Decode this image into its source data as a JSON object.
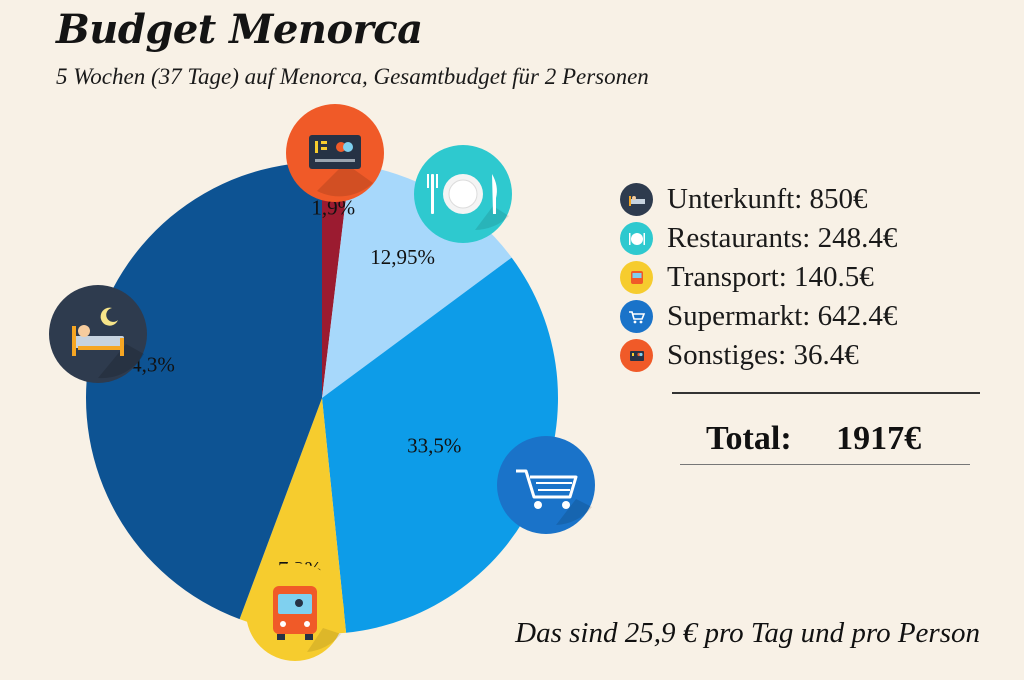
{
  "title": "Budget Menorca",
  "subtitle": "5 Wochen (37 Tage) auf Menorca, Gesamtbudget für 2 Personen",
  "chart_data": {
    "type": "pie",
    "start_angle_deg": 0,
    "direction": "clockwise",
    "slices": [
      {
        "key": "sonstiges",
        "label": "1,9%",
        "value": 1.9,
        "color": "#9b1b30",
        "icon": "credit-card-icon"
      },
      {
        "key": "restaurants",
        "label": "12,95%",
        "value": 12.95,
        "color": "#a7d8fb",
        "icon": "plate-cutlery-icon"
      },
      {
        "key": "supermarkt",
        "label": "33,5%",
        "value": 33.5,
        "color": "#0d9ce8",
        "icon": "shopping-cart-icon"
      },
      {
        "key": "transport",
        "label": "7,3%",
        "value": 7.3,
        "color": "#f6cc2e",
        "icon": "bus-icon"
      },
      {
        "key": "unterkunft",
        "label": "44,3%",
        "value": 44.3,
        "color": "#0d5393",
        "icon": "bed-icon"
      }
    ]
  },
  "legend": [
    {
      "key": "unterkunft",
      "text": "Unterkunft: 850€",
      "color": "#2e3b4e",
      "icon": "bed-icon"
    },
    {
      "key": "restaurants",
      "text": "Restaurants: 248.4€",
      "color": "#2ec9cf",
      "icon": "plate-cutlery-icon"
    },
    {
      "key": "transport",
      "text": "Transport: 140.5€",
      "color": "#f6cc2e",
      "icon": "bus-icon"
    },
    {
      "key": "supermarkt",
      "text": "Supermarkt: 642.4€",
      "color": "#1a73c9",
      "icon": "shopping-cart-icon"
    },
    {
      "key": "sonstiges",
      "text": "Sonstiges: 36.4€",
      "color": "#f05a28",
      "icon": "credit-card-icon"
    }
  ],
  "total": {
    "label": "Total:",
    "value": "1917€"
  },
  "footer": "Das sind 25,9 € pro Tag und pro Person",
  "icon_badges": {
    "unterkunft": "#2e3b4e",
    "restaurants": "#2ec9cf",
    "supermarkt": "#1a73c9",
    "transport": "#f6cc2e",
    "sonstiges": "#f05a28"
  }
}
